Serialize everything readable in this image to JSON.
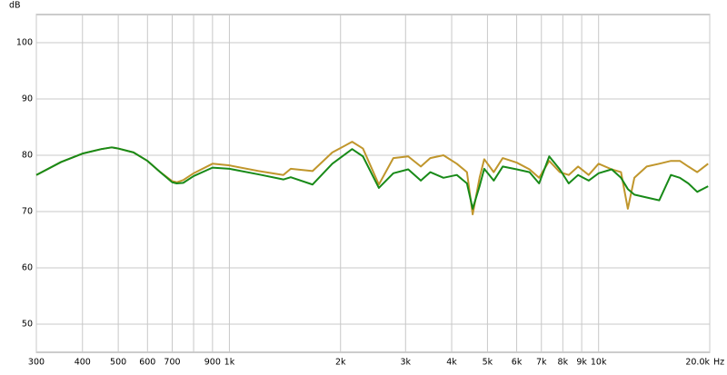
{
  "chart_data": {
    "type": "line",
    "ylabel": "dB",
    "xlabel": "Hz",
    "log_x": true,
    "grid": true,
    "xlim": [
      300,
      20000
    ],
    "ylim": [
      45,
      105
    ],
    "xticks": [
      300,
      400,
      500,
      600,
      700,
      {
        "value": 800,
        "label": null
      },
      900,
      {
        "value": 1000,
        "label": "1k"
      },
      {
        "value": 2000,
        "label": "2k"
      },
      {
        "value": 3000,
        "label": "3k"
      },
      {
        "value": 4000,
        "label": "4k"
      },
      {
        "value": 5000,
        "label": "5k"
      },
      {
        "value": 6000,
        "label": "6k"
      },
      {
        "value": 7000,
        "label": "7k"
      },
      {
        "value": 8000,
        "label": "8k"
      },
      {
        "value": 9000,
        "label": "9k"
      },
      {
        "value": 10000,
        "label": "10k"
      },
      {
        "value": 20000,
        "label": "20.0k"
      }
    ],
    "yticks": [
      50,
      60,
      70,
      80,
      90,
      100
    ],
    "x": [
      300,
      350,
      400,
      450,
      480,
      500,
      550,
      600,
      650,
      700,
      720,
      750,
      800,
      900,
      1000,
      1200,
      1400,
      1466,
      1680,
      1900,
      2150,
      2300,
      2540,
      2780,
      3050,
      3300,
      3500,
      3800,
      4130,
      4400,
      4560,
      4760,
      4900,
      5200,
      5500,
      6000,
      6500,
      6900,
      7350,
      7850,
      8300,
      8800,
      9400,
      10000,
      10850,
      11500,
      12000,
      12500,
      13500,
      14600,
      15700,
      16600,
      17500,
      18500,
      19800
    ],
    "series": [
      {
        "color": "#c0962c",
        "values": [
          76.5,
          78.8,
          80.3,
          81.1,
          81.4,
          81.2,
          80.5,
          79,
          77,
          75.4,
          75.2,
          75.6,
          76.8,
          78.5,
          78.2,
          77.2,
          76.5,
          77.6,
          77.2,
          80.5,
          82.4,
          81.2,
          74.8,
          79.5,
          79.8,
          78,
          79.5,
          80,
          78.5,
          77,
          69.5,
          76,
          79.3,
          77,
          79.5,
          78.7,
          77.5,
          76,
          79,
          77,
          76.5,
          78,
          76.5,
          78.5,
          77.5,
          77,
          70.5,
          76,
          78,
          78.5,
          79,
          79,
          78,
          77,
          78.5
        ]
      },
      {
        "color": "#188a18",
        "values": [
          76.5,
          78.8,
          80.3,
          81.1,
          81.4,
          81.2,
          80.5,
          79,
          77,
          75.2,
          75.0,
          75.1,
          76.3,
          77.8,
          77.6,
          76.6,
          75.7,
          76.1,
          74.8,
          78.5,
          81.1,
          79.8,
          74.2,
          76.8,
          77.5,
          75.5,
          77,
          76,
          76.5,
          75,
          70.5,
          74.5,
          77.6,
          75.5,
          78,
          77.5,
          77,
          75,
          79.8,
          77.5,
          75,
          76.5,
          75.5,
          76.8,
          77.5,
          76,
          74,
          73,
          72.5,
          72,
          76.5,
          76,
          75,
          73.5,
          74.5
        ]
      }
    ]
  }
}
